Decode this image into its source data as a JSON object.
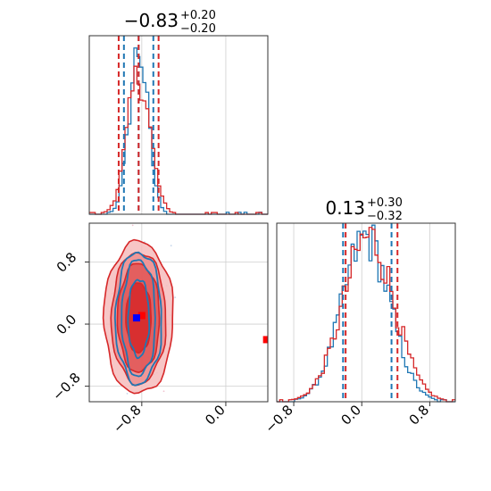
{
  "chart_data": {
    "type": "corner",
    "grid": true,
    "colors": {
      "blue": "#1f77b4",
      "red": "#d62728",
      "red_fill": "#f4a6a6",
      "red_dark": "#d62728",
      "marker_blue": "#0000ff",
      "marker_red": "#ff0000"
    },
    "panels": [
      {
        "id": "param1-hist",
        "type": "histogram",
        "title_value": "−0.83",
        "title_plus": "+0.20",
        "title_minus": "−0.20",
        "xlim": [
          -1.3,
          0.4
        ],
        "grid_x": [
          -0.8,
          0.0
        ],
        "quantiles_blue": [
          -0.97,
          -0.83,
          -0.69
        ],
        "quantiles_red": [
          -1.02,
          -0.83,
          -0.64
        ],
        "series": [
          {
            "name": "",
            "color": "blue",
            "center": -0.83,
            "sd": 0.09,
            "peak": 0.95
          },
          {
            "name": "",
            "color": "red",
            "center": -0.83,
            "sd": 0.11,
            "peak": 0.8
          }
        ]
      },
      {
        "id": "param2-hist",
        "type": "histogram",
        "title_value": "0.13",
        "title_plus": "+0.30",
        "title_minus": "−0.32",
        "xlim": [
          -1.0,
          1.1
        ],
        "xticks": [
          "−0.8",
          "0.0",
          "0.8"
        ],
        "xtick_values": [
          -0.8,
          0.0,
          0.8
        ],
        "quantiles_blue": [
          -0.22,
          0.35
        ],
        "quantiles_red": [
          -0.19,
          0.42
        ],
        "series": [
          {
            "name": "",
            "color": "blue",
            "center": 0.05,
            "sd": 0.28,
            "peak": 0.95
          },
          {
            "name": "",
            "color": "red",
            "center": 0.08,
            "sd": 0.3,
            "peak": 0.95
          }
        ]
      },
      {
        "id": "joint",
        "type": "contour",
        "xlim": [
          -1.3,
          0.4
        ],
        "ylim": [
          -1.0,
          1.3
        ],
        "xticks": [
          "−0.8",
          "0.0"
        ],
        "xtick_values": [
          -0.8,
          0.0
        ],
        "yticks": [
          "0.8",
          "0.0",
          "−0.8"
        ],
        "ytick_values": [
          0.8,
          0.0,
          -0.8
        ],
        "center": [
          -0.83,
          0.08
        ],
        "blue_contours": [
          [
            0.1,
            0.5
          ],
          [
            0.16,
            0.75
          ],
          [
            0.22,
            0.85
          ]
        ],
        "red_contours": [
          [
            0.12,
            0.45
          ],
          [
            0.2,
            0.7
          ],
          [
            0.26,
            0.85
          ],
          [
            0.33,
            0.98
          ]
        ],
        "marker_blue": [
          -0.85,
          0.08
        ],
        "marker_red": [
          -0.8,
          0.11
        ],
        "outlier_red": [
          0.38,
          -0.2
        ]
      }
    ]
  }
}
